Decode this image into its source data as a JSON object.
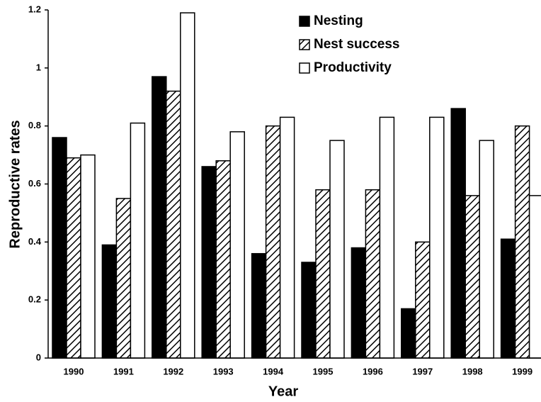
{
  "chart_data": {
    "type": "bar",
    "x_label": "Year",
    "y_label": "Reproductive rates",
    "categories": [
      "1990",
      "1991",
      "1992",
      "1993",
      "1994",
      "1995",
      "1996",
      "1997",
      "1998",
      "1999"
    ],
    "series": [
      {
        "name": "Nesting",
        "color": "#000000",
        "values": [
          0.76,
          0.39,
          0.97,
          0.66,
          0.36,
          0.33,
          0.38,
          0.17,
          0.86,
          0.41
        ]
      },
      {
        "name": "Nest success",
        "color": "#000000",
        "pattern": "hatch",
        "values": [
          0.69,
          0.55,
          0.92,
          0.68,
          0.8,
          0.58,
          0.58,
          0.4,
          0.56,
          0.8
        ]
      },
      {
        "name": "Productivity",
        "color": "#ffffff",
        "values": [
          0.7,
          0.81,
          1.19,
          0.78,
          0.83,
          0.75,
          0.83,
          0.83,
          0.75,
          0.56
        ]
      }
    ],
    "ylim": [
      0,
      1.2
    ],
    "yticks": [
      0,
      0.2,
      0.4,
      0.6,
      0.8,
      1,
      1.2
    ],
    "legend": "upper-right"
  }
}
